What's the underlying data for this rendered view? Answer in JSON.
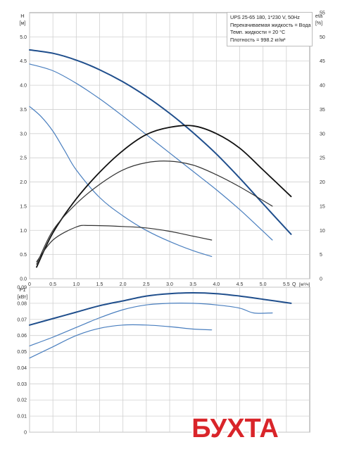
{
  "chart_data": [
    {
      "type": "line",
      "panel": "pump-head-curves",
      "title": "UPS 25-65 180, 1*230 V, 50Hz",
      "info": [
        "Перекачиваемая жидкость = Вода",
        "Темп. жидкости = 20 °C",
        "Плотность = 998.2 кг/м³"
      ],
      "left_axis": {
        "label": "H",
        "unit": "[м]",
        "range": [
          0,
          5.5
        ],
        "ticks": [
          "0.0",
          "0.5",
          "1.0",
          "1.5",
          "2.0",
          "2.5",
          "3.0",
          "3.5",
          "4.0",
          "4.5",
          "5.0"
        ]
      },
      "right_axis": {
        "label": "eta",
        "unit": "[%]",
        "range": [
          0,
          55
        ],
        "ticks": [
          "0",
          "5",
          "10",
          "15",
          "20",
          "25",
          "30",
          "35",
          "40",
          "45",
          "50",
          "55"
        ]
      },
      "x_axis": {
        "label": "Q",
        "unit": "[м³/ч]",
        "range": [
          0,
          6
        ],
        "ticks": [
          "0",
          "0.5",
          "1.0",
          "1.5",
          "2.0",
          "2.5",
          "3.0",
          "3.5",
          "4.0",
          "4.5",
          "5.0",
          "5.5"
        ]
      },
      "grid": true,
      "series": [
        {
          "axis": "left",
          "color": "#1f4e8c",
          "width": 2.0,
          "x": [
            0,
            0.5,
            1.0,
            1.5,
            2.0,
            2.5,
            3.0,
            3.5,
            4.0,
            4.5,
            5.0,
            5.6
          ],
          "y": [
            4.73,
            4.66,
            4.52,
            4.32,
            4.07,
            3.77,
            3.42,
            3.02,
            2.58,
            2.08,
            1.55,
            0.92
          ]
        },
        {
          "axis": "left",
          "color": "#4a7fbf",
          "width": 1.2,
          "x": [
            0,
            0.5,
            1.0,
            1.5,
            2.0,
            2.5,
            3.0,
            3.5,
            4.0,
            4.5,
            5.0,
            5.2
          ],
          "y": [
            4.44,
            4.3,
            4.04,
            3.72,
            3.36,
            2.98,
            2.6,
            2.22,
            1.84,
            1.43,
            0.98,
            0.8
          ]
        },
        {
          "axis": "left",
          "color": "#4a7fbf",
          "width": 1.2,
          "x": [
            0,
            0.25,
            0.5,
            0.75,
            1.0,
            1.5,
            2.0,
            2.5,
            3.0,
            3.5,
            3.9
          ],
          "y": [
            3.56,
            3.35,
            3.05,
            2.65,
            2.25,
            1.68,
            1.3,
            1.0,
            0.77,
            0.58,
            0.46
          ]
        },
        {
          "axis": "right",
          "color": "#111111",
          "width": 1.8,
          "x": [
            0.15,
            0.5,
            1.0,
            1.5,
            2.0,
            2.5,
            3.0,
            3.5,
            4.0,
            4.5,
            5.0,
            5.6
          ],
          "y": [
            2.4,
            9.5,
            16.5,
            22.0,
            26.5,
            29.8,
            31.3,
            31.6,
            30.0,
            27.0,
            22.5,
            17.0
          ]
        },
        {
          "axis": "right",
          "color": "#333333",
          "width": 1.2,
          "x": [
            0.15,
            0.5,
            1.0,
            1.5,
            2.0,
            2.5,
            3.0,
            3.5,
            4.0,
            4.5,
            5.2
          ],
          "y": [
            3.0,
            10.0,
            15.5,
            19.5,
            22.5,
            24.0,
            24.3,
            23.5,
            21.5,
            19.0,
            15.0
          ]
        },
        {
          "axis": "right",
          "color": "#333333",
          "width": 1.2,
          "x": [
            0.15,
            0.5,
            1.0,
            1.3,
            2.0,
            2.5,
            3.0,
            3.5,
            3.9
          ],
          "y": [
            3.5,
            8.0,
            10.7,
            11.0,
            10.8,
            10.5,
            9.8,
            8.8,
            8.0
          ]
        }
      ]
    },
    {
      "type": "line",
      "panel": "pump-power-curves",
      "left_axis": {
        "label": "P1",
        "unit": "[кВт]",
        "range": [
          0,
          0.09
        ],
        "ticks": [
          "0",
          "0.01",
          "0.02",
          "0.03",
          "0.04",
          "0.05",
          "0.06",
          "0.07",
          "0.08",
          "0.09"
        ]
      },
      "x_axis": {
        "range": [
          0,
          6
        ]
      },
      "grid": true,
      "series": [
        {
          "color": "#1f4e8c",
          "width": 2.0,
          "x": [
            0,
            0.5,
            1.0,
            1.5,
            2.0,
            2.5,
            3.0,
            3.5,
            4.0,
            4.5,
            5.0,
            5.6
          ],
          "y": [
            0.0665,
            0.0705,
            0.0745,
            0.0785,
            0.0815,
            0.0845,
            0.086,
            0.0865,
            0.086,
            0.0845,
            0.0825,
            0.08
          ]
        },
        {
          "color": "#4a7fbf",
          "width": 1.2,
          "x": [
            0,
            0.5,
            1.0,
            1.5,
            2.0,
            2.5,
            3.0,
            3.5,
            4.0,
            4.5,
            4.8,
            5.2
          ],
          "y": [
            0.0535,
            0.059,
            0.065,
            0.071,
            0.076,
            0.079,
            0.08,
            0.08,
            0.079,
            0.077,
            0.074,
            0.074
          ]
        },
        {
          "color": "#4a7fbf",
          "width": 1.2,
          "x": [
            0,
            0.5,
            1.0,
            1.5,
            2.0,
            2.5,
            3.0,
            3.5,
            3.9
          ],
          "y": [
            0.046,
            0.053,
            0.06,
            0.0645,
            0.0665,
            0.0665,
            0.0655,
            0.064,
            0.0635
          ]
        }
      ]
    }
  ],
  "stamp": {
    "text": "БУХТА",
    "color": "#d9252a"
  }
}
